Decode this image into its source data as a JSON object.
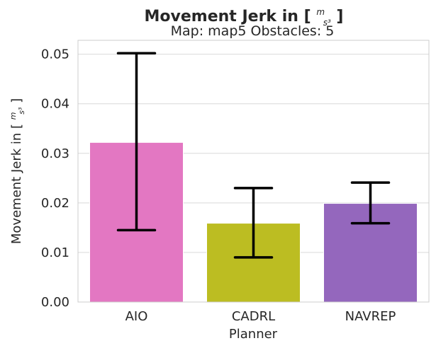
{
  "chart_data": {
    "type": "bar",
    "title": "Movement Jerk in [m/s³]",
    "title_prefix": "Movement Jerk in [",
    "title_suffix": "]",
    "unit_numerator": "m",
    "unit_denominator": "s³",
    "subtitle": "Map: map5 Obstacles: 5",
    "xlabel": "Planner",
    "ylabel": "Movement Jerk in [m/s³]",
    "ylabel_prefix": "Movement Jerk in [",
    "ylabel_suffix": "]",
    "categories": [
      "AIO",
      "CADRL",
      "NAVREP"
    ],
    "values": [
      0.0322,
      0.0159,
      0.0199
    ],
    "error_low": [
      0.0145,
      0.009,
      0.0159
    ],
    "error_high": [
      0.0502,
      0.023,
      0.0241
    ],
    "colors": [
      "#e377c2",
      "#bcbd22",
      "#9467bd"
    ],
    "ylim": [
      0,
      0.0528
    ],
    "yticks": [
      "0.00",
      "0.01",
      "0.02",
      "0.03",
      "0.04",
      "0.05"
    ],
    "ytick_values": [
      0,
      0.01,
      0.02,
      0.03,
      0.04,
      0.05
    ],
    "grid": true,
    "legend": "none"
  }
}
